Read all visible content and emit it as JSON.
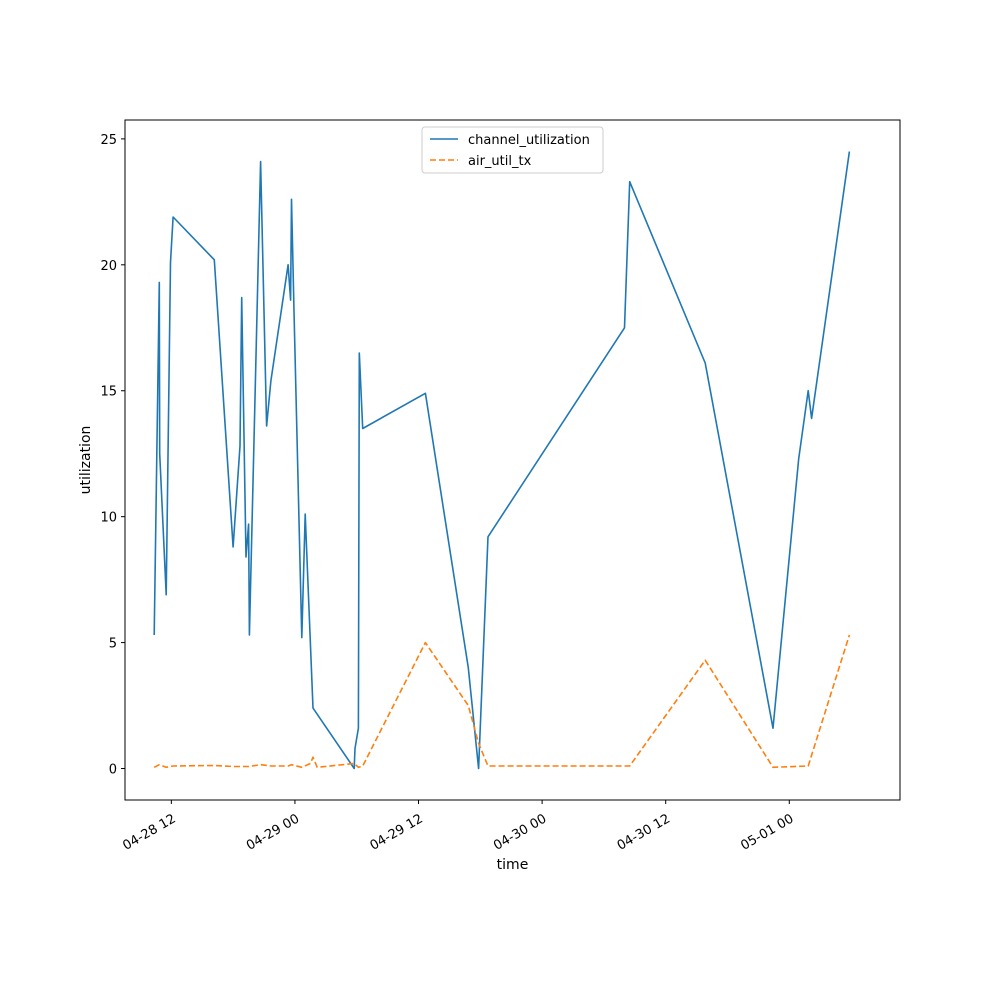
{
  "chart_data": {
    "type": "line",
    "xlabel": "time",
    "ylabel": "utilization",
    "x_type": "datetime",
    "xlim": [
      "2028-04-28T07:30",
      "2028-05-01T10:45"
    ],
    "ylim": [
      -1.25,
      25.75
    ],
    "x_ticks": [
      {
        "label": "04-28 12",
        "value": "2028-04-28T12:00"
      },
      {
        "label": "04-29 00",
        "value": "2028-04-29T00:00"
      },
      {
        "label": "04-29 12",
        "value": "2028-04-29T12:00"
      },
      {
        "label": "04-30 00",
        "value": "2028-04-30T00:00"
      },
      {
        "label": "04-30 12",
        "value": "2028-04-30T12:00"
      },
      {
        "label": "05-01 00",
        "value": "2028-05-01T00:00"
      }
    ],
    "y_ticks": [
      0,
      5,
      10,
      15,
      20,
      25
    ],
    "grid": false,
    "legend_position": "top-center",
    "series": [
      {
        "name": "channel_utilization",
        "color": "#1f77b4",
        "dash": "solid",
        "points": [
          [
            "2028-04-28T10:20",
            5.3
          ],
          [
            "2028-04-28T10:50",
            19.3
          ],
          [
            "2028-04-28T10:52",
            12.5
          ],
          [
            "2028-04-28T11:30",
            6.9
          ],
          [
            "2028-04-28T11:55",
            20.1
          ],
          [
            "2028-04-28T12:10",
            21.9
          ],
          [
            "2028-04-28T16:10",
            20.2
          ],
          [
            "2028-04-28T18:00",
            8.8
          ],
          [
            "2028-04-28T18:40",
            12.8
          ],
          [
            "2028-04-28T18:50",
            18.7
          ],
          [
            "2028-04-28T19:15",
            8.4
          ],
          [
            "2028-04-28T19:30",
            9.7
          ],
          [
            "2028-04-28T19:35",
            5.3
          ],
          [
            "2028-04-28T20:40",
            24.1
          ],
          [
            "2028-04-28T21:15",
            13.6
          ],
          [
            "2028-04-28T21:40",
            15.4
          ],
          [
            "2028-04-28T23:20",
            20.0
          ],
          [
            "2028-04-28T23:35",
            18.6
          ],
          [
            "2028-04-28T23:40",
            22.6
          ],
          [
            "2028-04-28T23:55",
            18.0
          ],
          [
            "2028-04-29T00:40",
            5.2
          ],
          [
            "2028-04-29T01:00",
            10.1
          ],
          [
            "2028-04-29T01:45",
            2.4
          ],
          [
            "2028-04-29T05:45",
            0.0
          ],
          [
            "2028-04-29T05:50",
            0.8
          ],
          [
            "2028-04-29T06:10",
            1.6
          ],
          [
            "2028-04-29T06:15",
            16.5
          ],
          [
            "2028-04-29T06:35",
            13.5
          ],
          [
            "2028-04-29T12:40",
            14.9
          ],
          [
            "2028-04-29T16:50",
            4.0
          ],
          [
            "2028-04-29T17:50",
            0.0
          ],
          [
            "2028-04-29T18:45",
            9.2
          ],
          [
            "2028-04-30T08:00",
            17.5
          ],
          [
            "2028-04-30T08:30",
            23.3
          ],
          [
            "2028-04-30T15:50",
            16.1
          ],
          [
            "2028-04-30T22:25",
            1.6
          ],
          [
            "2028-05-01T00:55",
            12.3
          ],
          [
            "2028-05-01T01:50",
            15.0
          ],
          [
            "2028-05-01T02:10",
            13.9
          ],
          [
            "2028-05-01T05:50",
            24.5
          ]
        ]
      },
      {
        "name": "air_util_tx",
        "color": "#ff7f0e",
        "dash": "dashed",
        "points": [
          [
            "2028-04-28T10:20",
            0.05
          ],
          [
            "2028-04-28T10:50",
            0.15
          ],
          [
            "2028-04-28T11:30",
            0.05
          ],
          [
            "2028-04-28T12:10",
            0.1
          ],
          [
            "2028-04-28T16:10",
            0.12
          ],
          [
            "2028-04-28T18:00",
            0.08
          ],
          [
            "2028-04-28T19:30",
            0.08
          ],
          [
            "2028-04-28T20:40",
            0.15
          ],
          [
            "2028-04-28T21:40",
            0.1
          ],
          [
            "2028-04-28T23:20",
            0.1
          ],
          [
            "2028-04-28T23:40",
            0.15
          ],
          [
            "2028-04-29T00:40",
            0.05
          ],
          [
            "2028-04-29T01:30",
            0.2
          ],
          [
            "2028-04-29T01:45",
            0.45
          ],
          [
            "2028-04-29T02:10",
            0.05
          ],
          [
            "2028-04-29T05:45",
            0.2
          ],
          [
            "2028-04-29T06:10",
            0.05
          ],
          [
            "2028-04-29T06:35",
            0.1
          ],
          [
            "2028-04-29T12:40",
            5.0
          ],
          [
            "2028-04-29T16:50",
            2.5
          ],
          [
            "2028-04-29T17:50",
            1.0
          ],
          [
            "2028-04-29T18:45",
            0.1
          ],
          [
            "2028-04-30T08:30",
            0.1
          ],
          [
            "2028-04-30T15:50",
            4.3
          ],
          [
            "2028-04-30T22:25",
            0.05
          ],
          [
            "2028-05-01T01:50",
            0.1
          ],
          [
            "2028-05-01T05:50",
            5.3
          ]
        ]
      }
    ]
  }
}
